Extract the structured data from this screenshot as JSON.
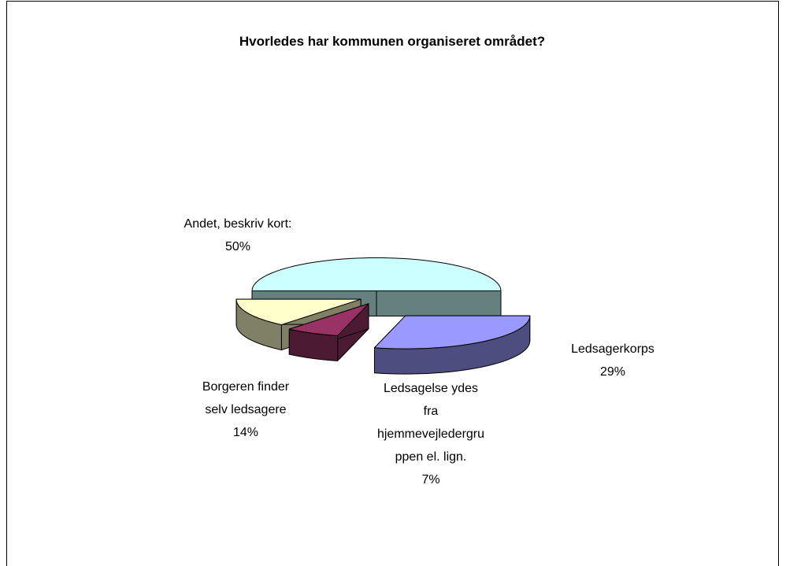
{
  "chart_data": {
    "type": "pie3d",
    "title": "Hvorledes har kommunen organiseret området?",
    "categories": [
      "Andet, beskriv kort:",
      "Ledsagerkorps",
      "Ledsagelse ydes fra hjemmevejledergruppen el. lign.",
      "Borgeren finder selv ledsagere"
    ],
    "values": [
      50,
      29,
      7,
      14
    ],
    "value_labels": [
      "50%",
      "29%",
      "7%",
      "14%"
    ],
    "colors": [
      "#ccffff",
      "#9999ff",
      "#993366",
      "#ffffcc"
    ]
  }
}
